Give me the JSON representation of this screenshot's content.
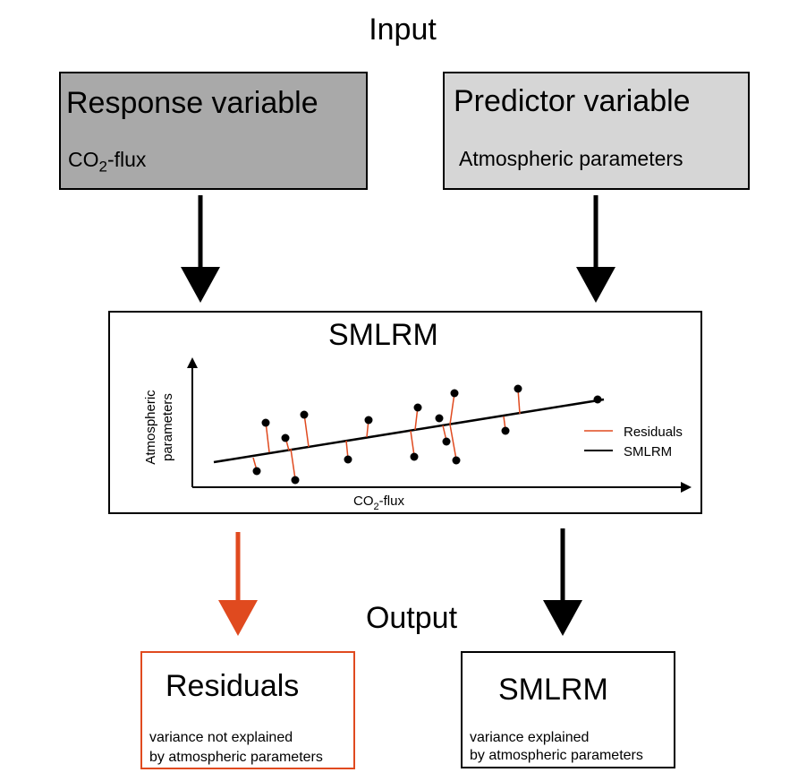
{
  "input_label": "Input",
  "output_label": "Output",
  "response_box": {
    "title": "Response variable",
    "subtitle_main": "CO",
    "subtitle_sub": "2",
    "subtitle_rest": "-flux"
  },
  "predictor_box": {
    "title": "Predictor variable",
    "subtitle": "Atmospheric parameters"
  },
  "model_box": {
    "title": "SMLRM",
    "y_axis_label_line1": "Atmospheric",
    "y_axis_label_line2": "parameters",
    "x_axis_label_main": "CO",
    "x_axis_label_sub": "2",
    "x_axis_label_rest": "-flux",
    "legend_residuals": "Residuals",
    "legend_model": "SMLRM"
  },
  "residuals_box": {
    "title": "Residuals",
    "line1": "variance not explained",
    "line2": "by atmospheric parameters"
  },
  "smlrm_box": {
    "title": "SMLRM",
    "line1": "variance explained",
    "line2": "by atmospheric parameters"
  },
  "colors": {
    "residual": "#e04a1f",
    "dark_box": "#a9a9a9",
    "light_box": "#d6d6d6"
  }
}
